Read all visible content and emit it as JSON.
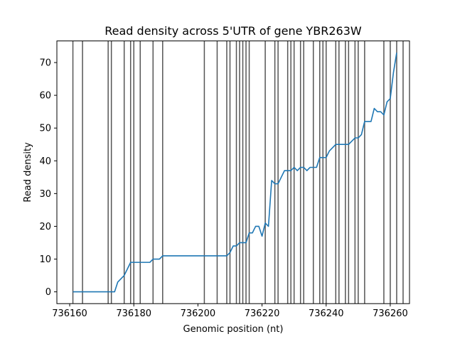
{
  "chart_data": {
    "type": "line",
    "title": "Read density across 5'UTR of gene YBR263W",
    "xlabel": "Genomic position (nt)",
    "ylabel": "Read density",
    "xlim": [
      736156,
      736266
    ],
    "ylim": [
      -3.6,
      76.6
    ],
    "xticks": [
      {
        "value": 736160,
        "label": "736160"
      },
      {
        "value": 736180,
        "label": "736180"
      },
      {
        "value": 736200,
        "label": "736200"
      },
      {
        "value": 736220,
        "label": "736220"
      },
      {
        "value": 736240,
        "label": "736240"
      },
      {
        "value": 736260,
        "label": "736260"
      }
    ],
    "yticks": [
      {
        "value": 0,
        "label": "0"
      },
      {
        "value": 10,
        "label": "10"
      },
      {
        "value": 20,
        "label": "20"
      },
      {
        "value": 30,
        "label": "30"
      },
      {
        "value": 40,
        "label": "40"
      },
      {
        "value": 50,
        "label": "50"
      },
      {
        "value": 60,
        "label": "60"
      },
      {
        "value": 70,
        "label": "70"
      }
    ],
    "grid": false,
    "line_color": "#1f77b4",
    "vline_color": "#555555",
    "vlines": [
      736161,
      736164,
      736172,
      736173,
      736177,
      736179,
      736180,
      736182,
      736186,
      736189,
      736202,
      736206,
      736209,
      736210,
      736212,
      736213,
      736214,
      736215,
      736216,
      736221,
      736224,
      736225,
      736228,
      736229,
      736230,
      736232,
      736233,
      736236,
      736238,
      736239,
      736240,
      736243,
      736244,
      736246,
      736247,
      736249,
      736250,
      736252,
      736258,
      736260,
      736262,
      736264
    ],
    "series": [
      {
        "x": [
          736161,
          736162,
          736163,
          736164,
          736165,
          736166,
          736167,
          736168,
          736169,
          736170,
          736171,
          736172,
          736173,
          736174,
          736175,
          736176,
          736177,
          736178,
          736179,
          736180,
          736181,
          736182,
          736183,
          736184,
          736185,
          736186,
          736187,
          736188,
          736189,
          736190,
          736191,
          736192,
          736193,
          736194,
          736195,
          736196,
          736197,
          736198,
          736199,
          736200,
          736201,
          736202,
          736203,
          736204,
          736205,
          736206,
          736207,
          736208,
          736209,
          736210,
          736211,
          736212,
          736213,
          736214,
          736215,
          736216,
          736217,
          736218,
          736219,
          736220,
          736221,
          736222,
          736223,
          736224,
          736225,
          736226,
          736227,
          736228,
          736229,
          736230,
          736231,
          736232,
          736233,
          736234,
          736235,
          736236,
          736237,
          736238,
          736239,
          736240,
          736241,
          736242,
          736243,
          736244,
          736245,
          736246,
          736247,
          736248,
          736249,
          736250,
          736251,
          736252,
          736253,
          736254,
          736255,
          736256,
          736257,
          736258,
          736259,
          736260,
          736261,
          736262
        ],
        "y": [
          0,
          0,
          0,
          0,
          0,
          0,
          0,
          0,
          0,
          0,
          0,
          0,
          0,
          0,
          3,
          4,
          5,
          7,
          9,
          9,
          9,
          9,
          9,
          9,
          9,
          10,
          10,
          10,
          11,
          11,
          11,
          11,
          11,
          11,
          11,
          11,
          11,
          11,
          11,
          11,
          11,
          11,
          11,
          11,
          11,
          11,
          11,
          11,
          11,
          12,
          14,
          14,
          15,
          15,
          15,
          18,
          18,
          20,
          20,
          17,
          21,
          20,
          34,
          33,
          33,
          35,
          37,
          37,
          37,
          38,
          37,
          38,
          38,
          37,
          38,
          38,
          38,
          41,
          41,
          41,
          43,
          44,
          45,
          45,
          45,
          45,
          45,
          46,
          47,
          47,
          48,
          52,
          52,
          52,
          56,
          55,
          55,
          54,
          58,
          59,
          67,
          73
        ]
      }
    ]
  }
}
